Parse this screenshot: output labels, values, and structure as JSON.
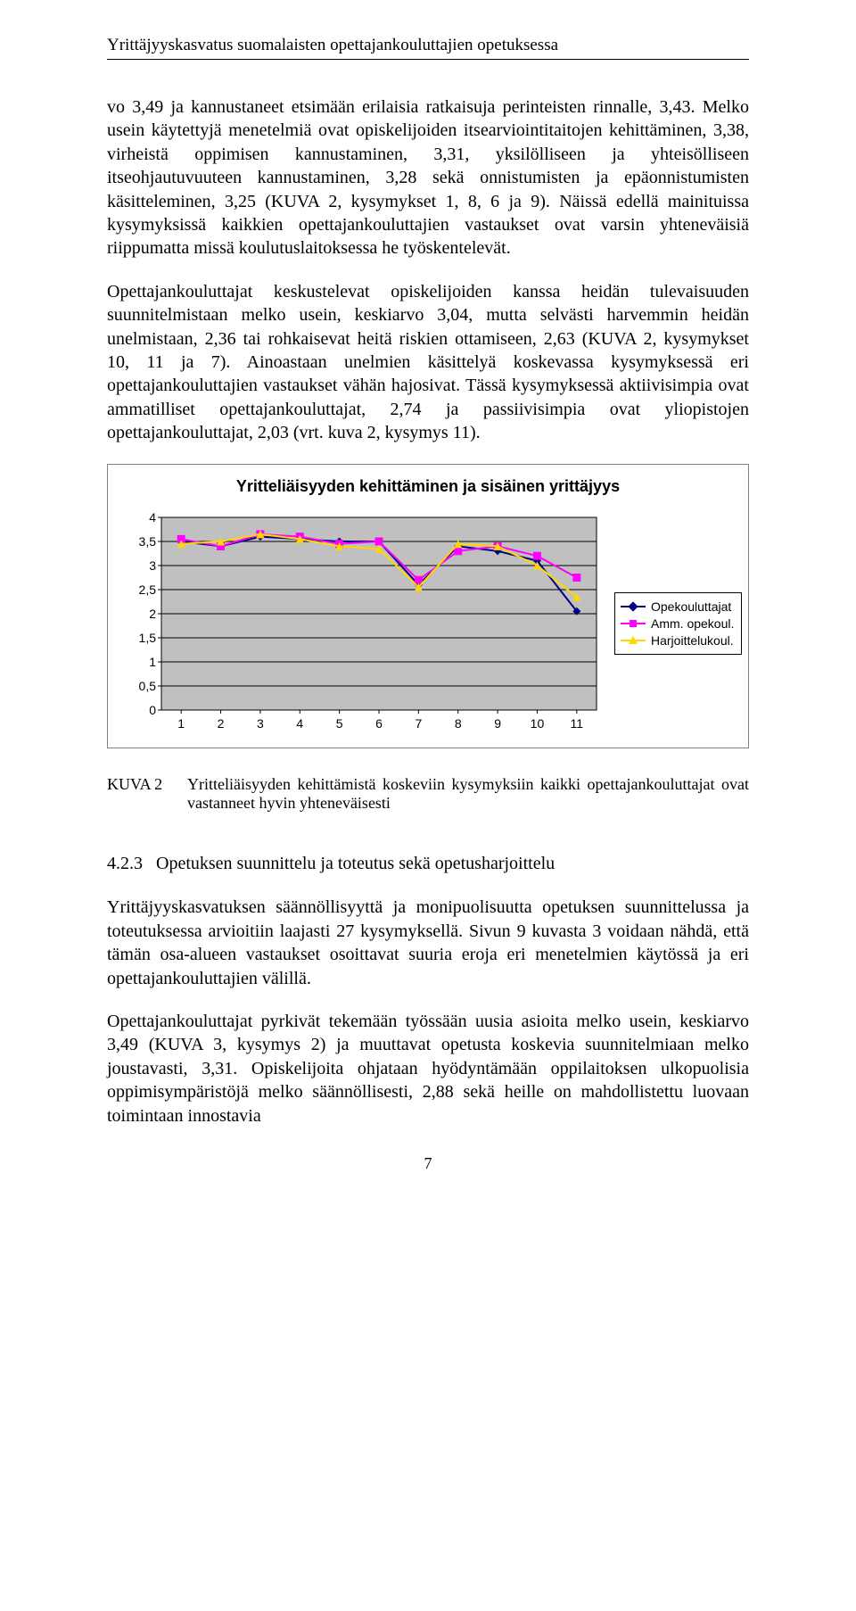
{
  "header": {
    "title": "Yrittäjyyskasvatus suomalaisten opettajankouluttajien opetuksessa"
  },
  "paragraphs": {
    "p1": "vo 3,49 ja kannustaneet etsimään erilaisia ratkaisuja perinteisten rinnalle, 3,43. Melko usein käytettyjä menetelmiä ovat opiskelijoiden itsearviointitaitojen kehittäminen, 3,38, virheistä oppimisen kannustaminen, 3,31, yksilölliseen ja yhteisölliseen itseohjautuvuuteen kannustaminen, 3,28 sekä onnistumisten ja epäonnistumisten käsitteleminen, 3,25 (KUVA 2, kysymykset 1, 8, 6 ja 9). Näissä edellä mainituissa kysymyksissä kaikkien opettajankouluttajien vastaukset ovat varsin yhteneväisiä riippumatta missä koulutuslaitoksessa he työskentelevät.",
    "p2": "Opettajankouluttajat keskustelevat opiskelijoiden kanssa heidän tulevaisuuden suunnitelmistaan melko usein, keskiarvo 3,04, mutta selvästi harvemmin heidän unelmistaan, 2,36 tai rohkaisevat heitä riskien ottamiseen, 2,63 (KUVA 2, kysymykset 10, 11 ja 7). Ainoastaan unelmien käsittelyä koskevassa kysymyksessä eri opettajankouluttajien vastaukset vähän hajosivat. Tässä kysymyksessä aktiivisimpia ovat ammatilliset opettajankouluttajat, 2,74 ja passiivisimpia ovat yliopistojen opettajankouluttajat, 2,03 (vrt. kuva 2, kysymys 11).",
    "p3": "Yrittäjyyskasvatuksen säännöllisyyttä ja monipuolisuutta opetuksen suunnittelussa ja toteutuksessa arvioitiin laajasti 27 kysymyksellä. Sivun 9 kuvasta 3 voidaan nähdä, että tämän osa-alueen vastaukset osoittavat suuria eroja eri menetelmien käytössä ja eri opettajankouluttajien välillä.",
    "p4": "Opettajankouluttajat pyrkivät tekemään työssään uusia asioita melko usein, keskiarvo 3,49 (KUVA 3, kysymys 2) ja muuttavat opetusta koskevia suunnitelmiaan melko joustavasti, 3,31. Opiskelijoita ohjataan hyödyntämään oppilaitoksen ulkopuolisia oppimisympäristöjä melko säännöllisesti, 2,88 sekä heille on mahdollistettu luovaan toimintaan innostavia"
  },
  "chart": {
    "title": "Yritteliäisyyden kehittäminen ja sisäinen yrittäjyys",
    "type": "line",
    "x_labels": [
      "1",
      "2",
      "3",
      "4",
      "5",
      "6",
      "7",
      "8",
      "9",
      "10",
      "11"
    ],
    "y_ticks": [
      "0",
      "0,5",
      "1",
      "1,5",
      "2",
      "2,5",
      "3",
      "3,5",
      "4"
    ],
    "ylim": [
      0,
      4
    ],
    "ytick_step": 0.5,
    "grid_color": "#000000",
    "plot_background": "#c0c0c0",
    "outer_background": "#ffffff",
    "axis_font": "Arial",
    "axis_fontsize": 14,
    "title_fontsize": 18,
    "series": [
      {
        "name": "Opekouluttajat",
        "color": "#000080",
        "marker": "diamond",
        "values": [
          3.5,
          3.4,
          3.6,
          3.55,
          3.5,
          3.5,
          2.6,
          3.4,
          3.3,
          3.1,
          2.05
        ]
      },
      {
        "name": "Amm. opekoul.",
        "color": "#ff00ff",
        "marker": "square",
        "values": [
          3.55,
          3.4,
          3.65,
          3.6,
          3.45,
          3.5,
          2.7,
          3.3,
          3.4,
          3.2,
          2.75
        ]
      },
      {
        "name": "Harjoittelukoul.",
        "color": "#ffd700",
        "marker": "triangle",
        "values": [
          3.45,
          3.5,
          3.65,
          3.55,
          3.4,
          3.35,
          2.55,
          3.45,
          3.4,
          3.0,
          2.35
        ]
      }
    ]
  },
  "caption": {
    "label": "KUVA 2",
    "text": "Yritteliäisyyden kehittämistä koskeviin kysymyksiin kaikki opettajankouluttajat ovat vastanneet hyvin yhteneväisesti"
  },
  "section": {
    "number": "4.2.3",
    "title": "Opetuksen suunnittelu ja toteutus sekä opetusharjoittelu"
  },
  "page_number": "7"
}
